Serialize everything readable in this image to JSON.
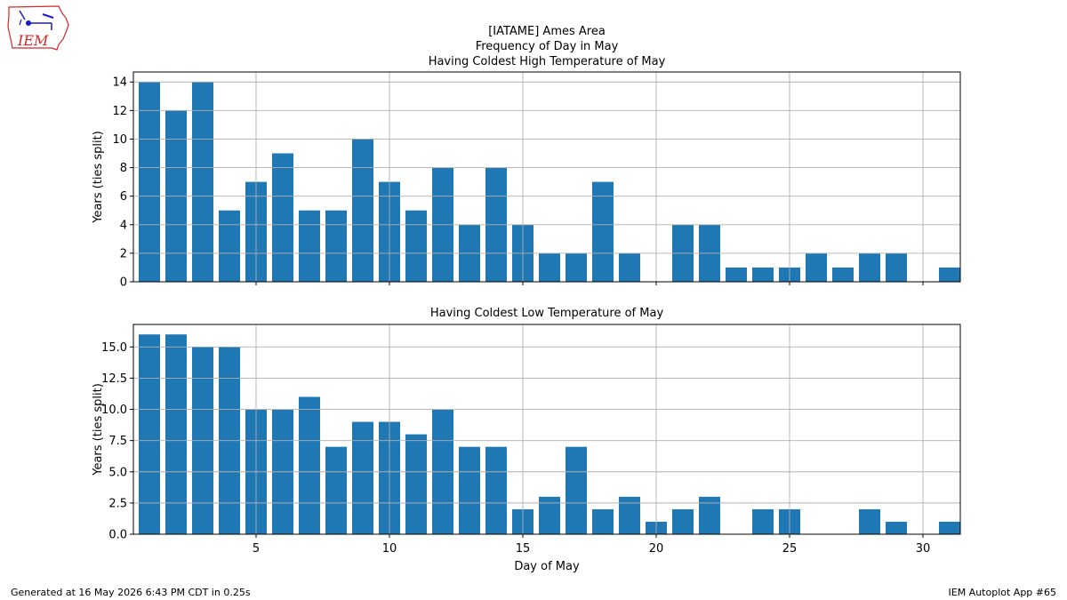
{
  "header": {
    "logo_text": "IEM",
    "title_lines": [
      "[IATAME] Ames Area",
      "Frequency of Day in May",
      "Having Coldest High Temperature of May"
    ]
  },
  "footer": {
    "left": "Generated at 16 May 2026 6:43 PM CDT in 0.25s",
    "right": "IEM Autoplot App #65"
  },
  "colors": {
    "bar": "#1f77b4",
    "grid": "#b0b0b0",
    "logo_red": "#d62728",
    "logo_blue": "#1a1acc"
  },
  "chart_data": [
    {
      "type": "bar",
      "title": "",
      "xlabel": "",
      "ylabel": "Years (ties split)",
      "x": [
        1,
        2,
        3,
        4,
        5,
        6,
        7,
        8,
        9,
        10,
        11,
        12,
        13,
        14,
        15,
        16,
        17,
        18,
        19,
        20,
        21,
        22,
        23,
        24,
        25,
        26,
        27,
        28,
        29,
        30,
        31
      ],
      "values": [
        14,
        12,
        14,
        5,
        7,
        9,
        5,
        5,
        10,
        7,
        5,
        8,
        4,
        8,
        4,
        2,
        2,
        7,
        2,
        0,
        4,
        4,
        1,
        1,
        1,
        2,
        1,
        2,
        2,
        0,
        1
      ],
      "xlim": [
        0.4,
        31.4
      ],
      "ylim": [
        0,
        14.7
      ],
      "xticks": [
        5,
        10,
        15,
        20,
        25,
        30
      ],
      "yticks": [
        0,
        2,
        4,
        6,
        8,
        10,
        12,
        14
      ],
      "ytick_labels": [
        "0",
        "2",
        "4",
        "6",
        "8",
        "10",
        "12",
        "14"
      ],
      "grid": true
    },
    {
      "type": "bar",
      "title": "Having Coldest Low Temperature of May",
      "xlabel": "Day of May",
      "ylabel": "Years (ties split)",
      "x": [
        1,
        2,
        3,
        4,
        5,
        6,
        7,
        8,
        9,
        10,
        11,
        12,
        13,
        14,
        15,
        16,
        17,
        18,
        19,
        20,
        21,
        22,
        23,
        24,
        25,
        26,
        27,
        28,
        29,
        30,
        31
      ],
      "values": [
        16,
        16,
        15,
        15,
        10,
        10,
        11,
        7,
        9,
        9,
        8,
        10,
        7,
        7,
        2,
        3,
        7,
        2,
        3,
        1,
        2,
        3,
        0,
        2,
        2,
        0,
        0,
        2,
        1,
        0,
        1
      ],
      "xlim": [
        0.4,
        31.4
      ],
      "ylim": [
        0,
        16.8
      ],
      "xticks": [
        5,
        10,
        15,
        20,
        25,
        30
      ],
      "xtick_labels": [
        "5",
        "10",
        "15",
        "20",
        "25",
        "30"
      ],
      "yticks": [
        0,
        2.5,
        5,
        7.5,
        10,
        12.5,
        15
      ],
      "ytick_labels": [
        "0.0",
        "2.5",
        "5.0",
        "7.5",
        "10.0",
        "12.5",
        "15.0"
      ],
      "grid": true
    }
  ]
}
